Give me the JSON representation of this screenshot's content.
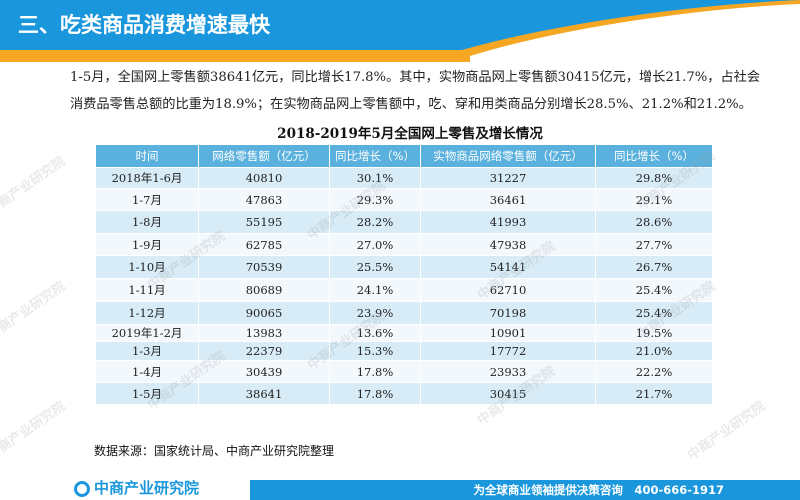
{
  "header": {
    "title": "三、吃类商品消费增速最快"
  },
  "intro": "1-5月，全国网上零售额38641亿元，同比增长17.8%。其中，实物商品网上零售额30415亿元，增长21.7%，占社会消费品零售总额的比重为18.9%；在实物商品网上零售额中，吃、穿和用类商品分别增长28.5%、21.2%和21.2%。",
  "table": {
    "title": "2018-2019年5月全国网上零售及增长情况",
    "headers": [
      "时间",
      "网络零售额（亿元）",
      "同比增长（%）",
      "实物商品网络零售额（亿元）",
      "同比增长（%）"
    ],
    "rows": [
      [
        "2018年1-6月",
        "40810",
        "30.1%",
        "31227",
        "29.8%"
      ],
      [
        "1-7月",
        "47863",
        "29.3%",
        "36461",
        "29.1%"
      ],
      [
        "1-8月",
        "55195",
        "28.2%",
        "41993",
        "28.6%"
      ],
      [
        "1-9月",
        "62785",
        "27.0%",
        "47938",
        "27.7%"
      ],
      [
        "1-10月",
        "70539",
        "25.5%",
        "54141",
        "26.7%"
      ],
      [
        "1-11月",
        "80689",
        "24.1%",
        "62710",
        "25.4%"
      ],
      [
        "1-12月",
        "90065",
        "23.9%",
        "70198",
        "25.4%"
      ],
      [
        "2019年1-2月",
        "13983",
        "13.6%",
        "10901",
        "19.5%"
      ],
      [
        "1-3月",
        "22379",
        "15.3%",
        "17772",
        "21.0%"
      ],
      [
        "1-4月",
        "30439",
        "17.8%",
        "23933",
        "22.2%"
      ],
      [
        "1-5月",
        "38641",
        "17.8%",
        "30415",
        "21.7%"
      ]
    ]
  },
  "source": "数据来源：国家统计局、中商产业研究院整理",
  "footer": {
    "logo": "中商产业研究院",
    "slogan": "为全球商业领袖提供决策咨询　400-666-1917"
  },
  "watermark": "中商产业研究院",
  "colors": {
    "brand_blue": "#1a97dc",
    "header_orange": "#f5a623",
    "table_header": "#5ab1dd",
    "row_odd": "#d7ecf7",
    "row_even": "#f2f8fc"
  }
}
